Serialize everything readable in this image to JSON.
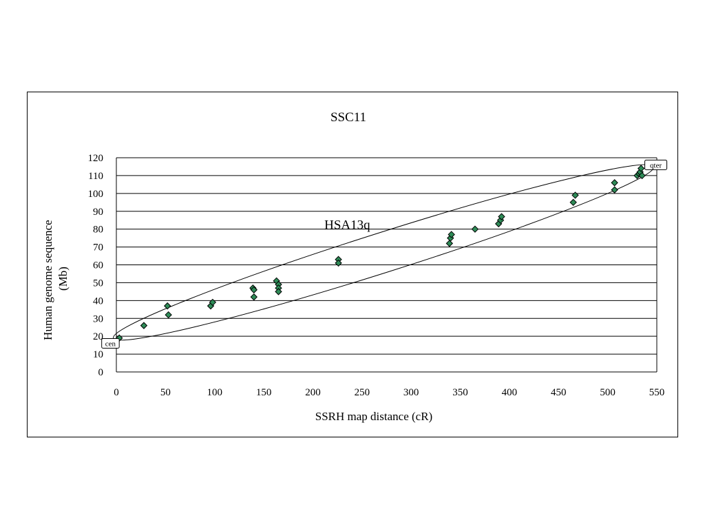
{
  "chart_data": {
    "type": "scatter",
    "title": "SSC11",
    "xlabel": "SSRH map distance (cR)",
    "ylabel": [
      "Human genome sequence",
      "(Mb)"
    ],
    "xlim": [
      0,
      550
    ],
    "ylim": [
      0,
      120
    ],
    "x_ticks": [
      0,
      50,
      100,
      150,
      200,
      250,
      300,
      350,
      400,
      450,
      500,
      550
    ],
    "y_ticks": [
      0,
      10,
      20,
      30,
      40,
      50,
      60,
      70,
      80,
      90,
      100,
      110,
      120
    ],
    "grid": "horizontal",
    "legend": "none",
    "marker": "diamond",
    "marker_color": "#2e8b57",
    "series": [
      {
        "points": [
          {
            "x": 3,
            "y": 19
          },
          {
            "x": 28,
            "y": 26
          },
          {
            "x": 52,
            "y": 37
          },
          {
            "x": 53,
            "y": 32
          },
          {
            "x": 96,
            "y": 37
          },
          {
            "x": 98,
            "y": 39
          },
          {
            "x": 139,
            "y": 47
          },
          {
            "x": 140,
            "y": 46
          },
          {
            "x": 140,
            "y": 42
          },
          {
            "x": 163,
            "y": 51
          },
          {
            "x": 165,
            "y": 49
          },
          {
            "x": 165,
            "y": 47
          },
          {
            "x": 165,
            "y": 45
          },
          {
            "x": 226,
            "y": 63
          },
          {
            "x": 226,
            "y": 61
          },
          {
            "x": 339,
            "y": 72
          },
          {
            "x": 340,
            "y": 75
          },
          {
            "x": 341,
            "y": 77
          },
          {
            "x": 365,
            "y": 80
          },
          {
            "x": 389,
            "y": 83
          },
          {
            "x": 391,
            "y": 85
          },
          {
            "x": 392,
            "y": 87
          },
          {
            "x": 465,
            "y": 95
          },
          {
            "x": 467,
            "y": 99
          },
          {
            "x": 507,
            "y": 106
          },
          {
            "x": 507,
            "y": 102
          },
          {
            "x": 530,
            "y": 110
          },
          {
            "x": 532,
            "y": 111
          },
          {
            "x": 533,
            "y": 112
          },
          {
            "x": 534,
            "y": 114
          },
          {
            "x": 535,
            "y": 110
          }
        ]
      }
    ],
    "annotations": [
      {
        "text": "HSA13q",
        "kind": "ellipse-label",
        "x": 235,
        "y": 80
      },
      {
        "text": "cen",
        "kind": "boxed-label",
        "x": -6,
        "y": 16
      },
      {
        "text": "qter",
        "kind": "boxed-label",
        "x": 549,
        "y": 116
      }
    ],
    "ellipse": {
      "from": {
        "x": -3,
        "y": 19
      },
      "to": {
        "x": 547,
        "y": 115
      }
    }
  }
}
